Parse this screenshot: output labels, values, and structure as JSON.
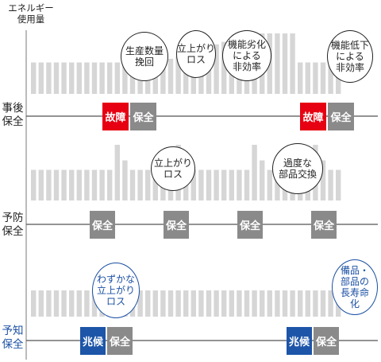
{
  "axis_title": "エネルギー\n使用量",
  "colors": {
    "bar": "#d6d6d6",
    "line": "#555555",
    "gray_box": "#8a8a8a",
    "red_box": "#e60012",
    "blue_box": "#1d55a8",
    "blue_text": "#1a4fa3"
  },
  "rows": [
    {
      "label": "事後\n保全",
      "label_color": "#222222",
      "bars": [
        0.52,
        0.52,
        0.52,
        0.52,
        0.52,
        0.52,
        0.52,
        0.52,
        0.52,
        0.52,
        0.52,
        0.52,
        0.52,
        0.52,
        0.52,
        0.52,
        0.52,
        0.55,
        0.58,
        0.62,
        0.66,
        0.7,
        0.74,
        0.78,
        0.82,
        0.86,
        0.9,
        0.96,
        1,
        1,
        1,
        1,
        1,
        1,
        1,
        0.52,
        0.52,
        0.52,
        0.52,
        0.52,
        0.52
      ],
      "boxes": [
        {
          "text": "故障",
          "kind": "red"
        },
        {
          "text": "保全",
          "kind": "gray"
        },
        {
          "text": "故障",
          "kind": "red"
        },
        {
          "text": "保全",
          "kind": "gray"
        }
      ],
      "bubbles": [
        {
          "text": "生産数量\n挽回",
          "style": "black"
        },
        {
          "text": "立上がり\nロス",
          "style": "black"
        },
        {
          "text": "機能劣化\nによる\n非効率",
          "style": "black"
        },
        {
          "text": "機能低下\nによる\n非効率",
          "style": "black"
        }
      ]
    },
    {
      "label": "予防\n保全",
      "label_color": "#222222",
      "bars": [
        0.55,
        0.55,
        0.55,
        0.55,
        0.55,
        0.55,
        0.55,
        0.55,
        0.55,
        0.55,
        0.55,
        1,
        0.72,
        0.55,
        0.55,
        0.55,
        0.55,
        0.55,
        0.55,
        1,
        0.72,
        0.55,
        0.55,
        0.55,
        0.55,
        0.55,
        0.55,
        0.55,
        0.55,
        1,
        0.72,
        0.55,
        0.55,
        0.55,
        0.55,
        0.55,
        0.55,
        1,
        0.72,
        0.55,
        0.55
      ],
      "boxes": [
        {
          "text": "保全",
          "kind": "gray"
        },
        {
          "text": "保全",
          "kind": "gray"
        },
        {
          "text": "保全",
          "kind": "gray"
        },
        {
          "text": "保全",
          "kind": "gray"
        }
      ],
      "bubbles": [
        {
          "text": "立上がり\nロス",
          "style": "black"
        },
        {
          "text": "過度な\n部品交換",
          "style": "black"
        }
      ]
    },
    {
      "label": "予知\n保全",
      "label_color": "#1a4fa3",
      "bars": [
        0.5,
        0.5,
        0.5,
        0.5,
        0.5,
        0.5,
        0.5,
        0.5,
        0.5,
        0.5,
        0.5,
        1,
        0.72,
        0.5,
        0.5,
        0.5,
        0.5,
        0.5,
        0.5,
        0.5,
        0.5,
        0.5,
        0.5,
        0.5,
        0.5,
        0.5,
        0.5,
        0.5,
        0.5,
        0.5,
        0.5,
        0.5,
        0.5,
        0.5,
        0.5,
        0.5,
        0.5,
        0.5,
        0.5,
        0.5,
        0.5
      ],
      "boxes": [
        {
          "text": "兆候",
          "kind": "blue"
        },
        {
          "text": "保全",
          "kind": "gray"
        },
        {
          "text": "兆候",
          "kind": "blue"
        },
        {
          "text": "保全",
          "kind": "gray"
        }
      ],
      "bubbles": [
        {
          "text": "わずかな\n立上がり\nロス",
          "style": "blue"
        },
        {
          "text": "備品・\n部品の\n長寿命\n化",
          "style": "blue"
        }
      ]
    }
  ]
}
